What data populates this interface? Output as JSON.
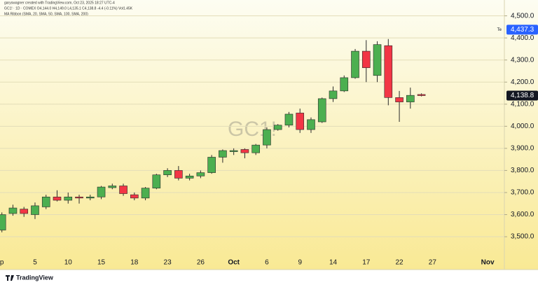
{
  "chart_data": {
    "type": "candlestick",
    "watermark": "GC1!",
    "annotations": {
      "credit": "garyswagner created with TradingView.com, Oct 23, 2025 18:27 UTC-4",
      "legend_line": "GC1! · 1D · COMEX  O4,144.0  H4,149.0  L4,135.1  C4,138.8  -4.4 (-0.11%)  Vol1.45K",
      "indicator": "MA Ribbon (SMA, 20, SMA, 50, SMA, 100, SMA, 200)",
      "brand": "TradingView"
    },
    "categories": [
      "p",
      null,
      null,
      "5",
      null,
      null,
      "10",
      null,
      null,
      "15",
      null,
      null,
      "18",
      null,
      null,
      "23",
      null,
      null,
      "26",
      null,
      null,
      "Oct",
      null,
      null,
      "6",
      null,
      null,
      "9",
      null,
      null,
      "14",
      null,
      null,
      "17",
      null,
      null,
      "22",
      null,
      null,
      "27",
      null,
      null,
      null,
      null,
      "Nov"
    ],
    "open": [
      3530,
      3605,
      3625,
      3600,
      3635,
      3680,
      3665,
      3680,
      3675,
      3680,
      3722,
      3730,
      3690,
      3675,
      3720,
      3780,
      3800,
      3765,
      3775,
      3790,
      3860,
      3885,
      3895,
      3880,
      3915,
      3985,
      4005,
      4060,
      3985,
      4020,
      4125,
      4160,
      4220,
      4340,
      4230,
      4365,
      4130,
      4110,
      4144,
      null,
      null,
      null,
      null,
      null,
      null
    ],
    "high": [
      3610,
      3645,
      3635,
      3655,
      3690,
      3710,
      3700,
      3690,
      3690,
      3730,
      3740,
      3740,
      3700,
      3725,
      3785,
      3810,
      3820,
      3785,
      3800,
      3870,
      3895,
      3900,
      3900,
      3920,
      3995,
      4010,
      4065,
      4080,
      4040,
      4130,
      4180,
      4230,
      4350,
      4390,
      4385,
      4395,
      4160,
      4175,
      4149,
      null,
      null,
      null,
      null,
      null,
      null
    ],
    "low": [
      3520,
      3595,
      3590,
      3580,
      3625,
      3660,
      3650,
      3650,
      3665,
      3670,
      3715,
      3685,
      3665,
      3665,
      3715,
      3770,
      3755,
      3755,
      3765,
      3785,
      3835,
      3870,
      3855,
      3870,
      3900,
      3980,
      3995,
      3970,
      3970,
      4015,
      4110,
      4155,
      4215,
      4200,
      4200,
      4095,
      4020,
      4080,
      4135.1,
      null,
      null,
      null,
      null,
      null,
      null
    ],
    "close": [
      3600,
      3630,
      3605,
      3640,
      3680,
      3665,
      3680,
      3675,
      3680,
      3725,
      3730,
      3695,
      3675,
      3720,
      3780,
      3800,
      3765,
      3775,
      3790,
      3860,
      3890,
      3890,
      3880,
      3915,
      3985,
      4005,
      4055,
      3985,
      4030,
      4125,
      4160,
      4220,
      4340,
      4265,
      4370,
      4130,
      4110,
      4140,
      4138.8,
      null,
      null,
      null,
      null,
      null,
      null
    ],
    "up_color": "#4caf50",
    "down_color": "#f23645",
    "ylim": [
      3405,
      4540
    ],
    "yticks": [
      {
        "value": 3500,
        "label": "3,500.0"
      },
      {
        "value": 3600,
        "label": "3,600.0"
      },
      {
        "value": 3700,
        "label": "3,700.0"
      },
      {
        "value": 3800,
        "label": "3,800.0"
      },
      {
        "value": 3900,
        "label": "3,900.0"
      },
      {
        "value": 4000,
        "label": "4,000.0"
      },
      {
        "value": 4100,
        "label": "4,100.0"
      },
      {
        "value": 4200,
        "label": "4,200.0"
      },
      {
        "value": 4300,
        "label": "4,300.0"
      },
      {
        "value": 4400,
        "label": "4,400.0"
      },
      {
        "value": 4500,
        "label": "4,500.0"
      }
    ],
    "grid": true,
    "price_tags": [
      {
        "value": 4437.3,
        "label": "4,437.3",
        "tag": "Te",
        "color": "#2962ff"
      },
      {
        "value": 4138.8,
        "label": "4,138.8",
        "color": "#131722"
      }
    ]
  }
}
